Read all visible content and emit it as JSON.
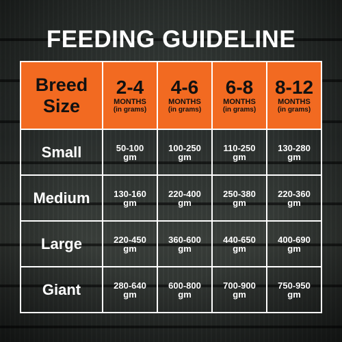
{
  "title": "FEEDING GUIDELINE",
  "header": {
    "corner": [
      "Breed",
      "Size"
    ],
    "columns": [
      {
        "range": "2-4",
        "unit": "MONTHS",
        "sub": "(in grams)"
      },
      {
        "range": "4-6",
        "unit": "MONTHS",
        "sub": "(in grams)"
      },
      {
        "range": "6-8",
        "unit": "MONTHS",
        "sub": "(in grams)"
      },
      {
        "range": "8-12",
        "unit": "MONTHS",
        "sub": "(in grams)"
      }
    ]
  },
  "rows": [
    {
      "size": "Small",
      "values": [
        [
          "50-100",
          "gm"
        ],
        [
          "100-250",
          "gm"
        ],
        [
          "110-250",
          "gm"
        ],
        [
          "130-280",
          "gm"
        ]
      ]
    },
    {
      "size": "Medium",
      "values": [
        [
          "130-160",
          "gm"
        ],
        [
          "220-400",
          "gm"
        ],
        [
          "250-380",
          "gm"
        ],
        [
          "220-360",
          "gm"
        ]
      ]
    },
    {
      "size": "Large",
      "values": [
        [
          "220-450",
          "gm"
        ],
        [
          "360-600",
          "gm"
        ],
        [
          "440-650",
          "gm"
        ],
        [
          "400-690",
          "gm"
        ]
      ]
    },
    {
      "size": "Giant",
      "values": [
        [
          "280-640",
          "gm"
        ],
        [
          "600-800",
          "gm"
        ],
        [
          "700-900",
          "gm"
        ],
        [
          "750-950",
          "gm"
        ]
      ]
    }
  ],
  "colors": {
    "header_bg": "#f26a21",
    "grid_lines": "#ffffff",
    "text": "#ffffff",
    "header_text": "#111111"
  }
}
